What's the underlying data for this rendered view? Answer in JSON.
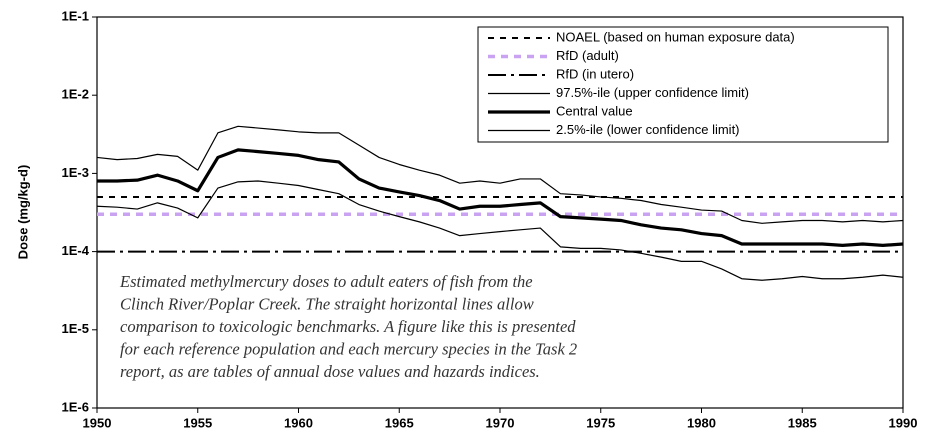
{
  "chart_data": {
    "type": "line",
    "ylabel": "Dose (mg/kg-d)",
    "log_y": true,
    "ylim": [
      1e-06,
      0.1
    ],
    "yticks": [
      {
        "value": 1e-06,
        "label": "1E-6"
      },
      {
        "value": 1e-05,
        "label": "1E-5"
      },
      {
        "value": 0.0001,
        "label": "1E-4"
      },
      {
        "value": 0.001,
        "label": "1E-3"
      },
      {
        "value": 0.01,
        "label": "1E-2"
      },
      {
        "value": 0.1,
        "label": "1E-1"
      }
    ],
    "xlim": [
      1950,
      1990
    ],
    "xticks": [
      1950,
      1955,
      1960,
      1965,
      1970,
      1975,
      1980,
      1985,
      1990
    ],
    "legend": "upper right",
    "reference_lines": [
      {
        "name": "NOAEL (based on human exposure data)",
        "value": 0.0005,
        "color": "#000000",
        "style": "dashed"
      },
      {
        "name": "RfD (adult)",
        "value": 0.0003,
        "color": "#c9a3f2",
        "style": "dashed-thick"
      },
      {
        "name": "RfD (in utero)",
        "value": 0.0001,
        "color": "#000000",
        "style": "dashdot"
      }
    ],
    "x": [
      1950,
      1951,
      1952,
      1953,
      1954,
      1955,
      1956,
      1957,
      1958,
      1959,
      1960,
      1961,
      1962,
      1963,
      1964,
      1965,
      1966,
      1967,
      1968,
      1969,
      1970,
      1971,
      1972,
      1973,
      1974,
      1975,
      1976,
      1977,
      1978,
      1979,
      1980,
      1981,
      1982,
      1983,
      1984,
      1985,
      1986,
      1987,
      1988,
      1989,
      1990
    ],
    "series": [
      {
        "name": "97.5%-ile (upper confidence limit)",
        "color": "#000000",
        "style": "solid-thin",
        "values": [
          0.0016,
          0.0015,
          0.00155,
          0.00175,
          0.00165,
          0.0011,
          0.0033,
          0.004,
          0.0038,
          0.0036,
          0.0034,
          0.0033,
          0.0033,
          0.0023,
          0.0016,
          0.0013,
          0.0011,
          0.00095,
          0.00075,
          0.0008,
          0.00075,
          0.00085,
          0.00085,
          0.00055,
          0.00053,
          0.0005,
          0.00048,
          0.00045,
          0.0004,
          0.00037,
          0.00034,
          0.00033,
          0.00025,
          0.00023,
          0.00024,
          0.00025,
          0.00025,
          0.00024,
          0.00025,
          0.00024,
          0.00025
        ]
      },
      {
        "name": "Central value",
        "color": "#000000",
        "style": "solid-thick",
        "values": [
          0.0008,
          0.0008,
          0.00082,
          0.00095,
          0.0008,
          0.0006,
          0.0016,
          0.002,
          0.0019,
          0.0018,
          0.0017,
          0.0015,
          0.0014,
          0.00085,
          0.00065,
          0.00058,
          0.00052,
          0.00045,
          0.00035,
          0.00038,
          0.00038,
          0.0004,
          0.00042,
          0.00028,
          0.00027,
          0.00026,
          0.00025,
          0.00022,
          0.0002,
          0.00019,
          0.00017,
          0.00016,
          0.000125,
          0.000125,
          0.000125,
          0.000125,
          0.000125,
          0.00012,
          0.000125,
          0.00012,
          0.000125
        ]
      },
      {
        "name": "2.5%-ile (lower confidence limit)",
        "color": "#000000",
        "style": "solid-thin",
        "values": [
          0.00038,
          0.00037,
          0.00035,
          0.00042,
          0.00036,
          0.00027,
          0.00065,
          0.00078,
          0.0008,
          0.00075,
          0.0007,
          0.00062,
          0.00055,
          0.0004,
          0.00033,
          0.00028,
          0.00024,
          0.0002,
          0.00016,
          0.00017,
          0.00018,
          0.00019,
          0.0002,
          0.000115,
          0.00011,
          0.00011,
          0.000105,
          9.5e-05,
          8.5e-05,
          7.5e-05,
          7.5e-05,
          6e-05,
          4.5e-05,
          4.3e-05,
          4.5e-05,
          4.8e-05,
          4.5e-05,
          4.5e-05,
          4.7e-05,
          5e-05,
          4.7e-05
        ]
      }
    ],
    "annotation": [
      "Estimated methylmercury doses to adult eaters of fish from the",
      "Clinch River/Poplar Creek.  The straight horizontal lines allow",
      "comparison to toxicologic benchmarks. A figure like this is presented",
      "for each reference population and each mercury species in the Task 2",
      "report, as are tables of annual dose values and hazards indices."
    ]
  }
}
